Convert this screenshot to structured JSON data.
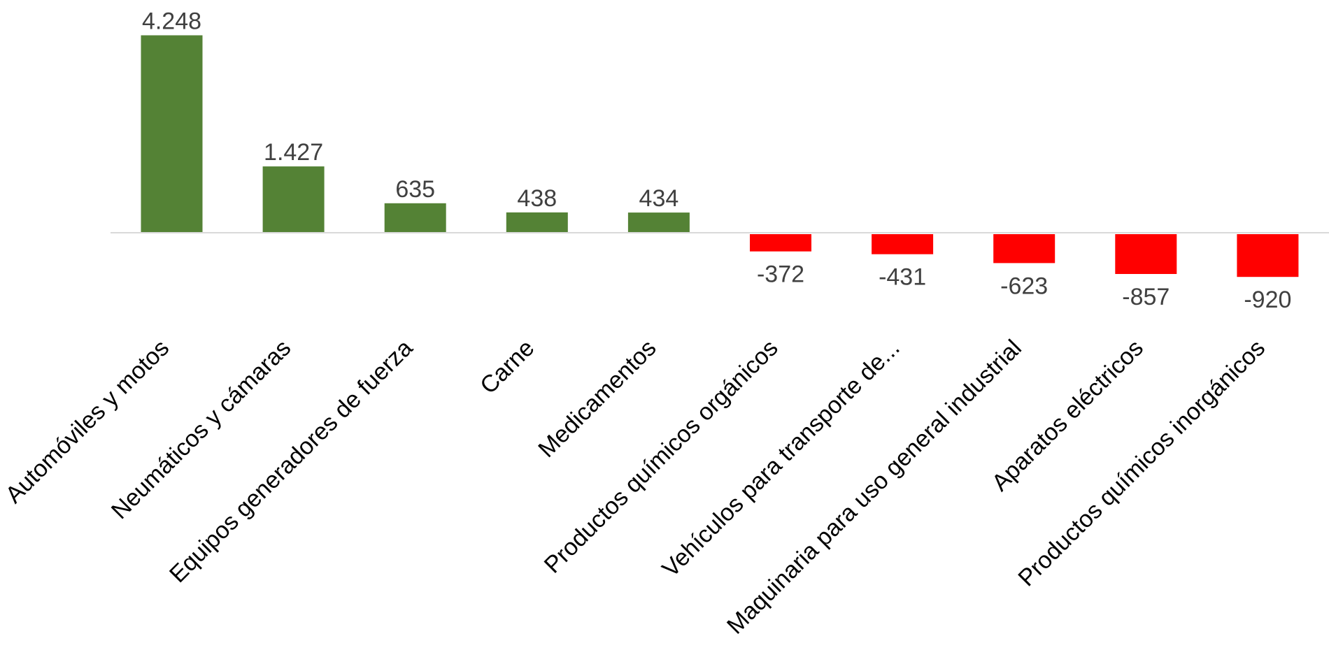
{
  "chart_data": {
    "type": "bar",
    "title": "",
    "xlabel": "",
    "ylabel": "",
    "categories": [
      "Automóviles y motos",
      "Neumáticos y cámaras",
      "Equipos generadores de fuerza",
      "Carne",
      "Medicamentos",
      "Productos químicos orgánicos",
      "Vehículos para  transporte de...",
      "Maquinaria para uso general industrial",
      "Aparatos eléctricos",
      "Productos químicos inorgánicos"
    ],
    "values": [
      4248,
      1427,
      635,
      438,
      434,
      -372,
      -431,
      -623,
      -857,
      -920
    ],
    "value_labels": [
      "4.248",
      "1.427",
      "635",
      "438",
      "434",
      "-372",
      "-431",
      "-623",
      "-857",
      "-920"
    ],
    "ylim": [
      -920,
      4248
    ],
    "grid": false,
    "legend": "none",
    "colors": {
      "positive": "#548235",
      "negative": "#ff0000",
      "baseline": "#d9d9d9",
      "value_text": "#404040",
      "tick_text": "#000000"
    }
  }
}
